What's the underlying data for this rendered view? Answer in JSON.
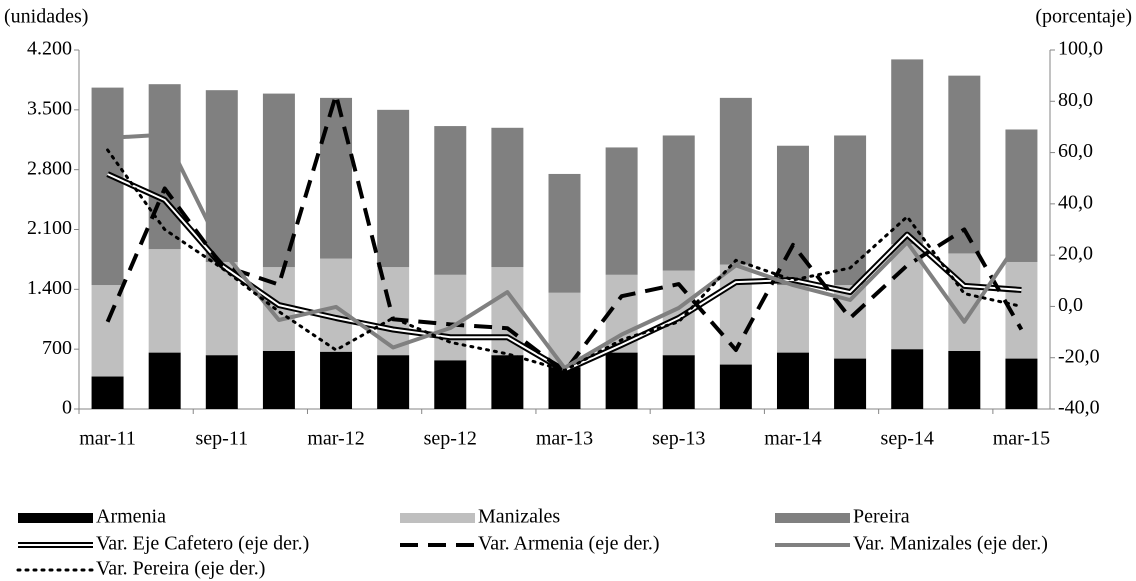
{
  "chart_data": {
    "type": "bar-line",
    "y_label": "(unidades)",
    "y2_label": "(porcentaje)",
    "categories": [
      "mar-11",
      null,
      "sep-11",
      null,
      "mar-12",
      null,
      "sep-12",
      null,
      "mar-13",
      null,
      "sep-13",
      null,
      "mar-14",
      null,
      "sep-14",
      null,
      "mar-15"
    ],
    "stacked": true,
    "legend": "bottom",
    "ylim": [
      0,
      4200
    ],
    "yticks": [
      0,
      700,
      {
        "value": 1400,
        "label": "1.400"
      },
      {
        "value": 2100,
        "label": "2.100"
      },
      {
        "value": 2800,
        "label": "2.800"
      },
      {
        "value": 3500,
        "label": "3.500"
      },
      {
        "value": 4200,
        "label": "4.200"
      }
    ],
    "y2lim": [
      -40,
      100
    ],
    "y2ticks": [
      {
        "value": -40,
        "label": "-40,0"
      },
      {
        "value": -20,
        "label": "-20,0"
      },
      {
        "value": 0,
        "label": "0,0"
      },
      {
        "value": 20,
        "label": "20,0"
      },
      {
        "value": 40,
        "label": "40,0"
      },
      {
        "value": 60,
        "label": "60,0"
      },
      {
        "value": 80,
        "label": "80,0"
      },
      {
        "value": 100,
        "label": "100,0"
      }
    ],
    "series": [
      {
        "name": "Armenia",
        "type": "bar",
        "color": "#000000",
        "values": [
          380,
          660,
          630,
          680,
          670,
          630,
          570,
          630,
          490,
          660,
          630,
          520,
          660,
          590,
          700,
          680,
          590
        ]
      },
      {
        "name": "Manizales",
        "type": "bar",
        "color": "#bfbfbf",
        "values": [
          1070,
          1210,
          1090,
          980,
          1090,
          1030,
          1000,
          1030,
          870,
          910,
          990,
          1170,
          790,
          860,
          1230,
          1140,
          1130
        ]
      },
      {
        "name": "Pereira",
        "type": "bar",
        "color": "#808080",
        "values": [
          2310,
          1930,
          2010,
          2030,
          1880,
          1840,
          1740,
          1630,
          1390,
          1490,
          1580,
          1950,
          1630,
          1750,
          2160,
          2080,
          1550
        ]
      },
      {
        "name": "Var. Eje Cafetero (eje der.)",
        "type": "line",
        "axis": "y2",
        "color": "#000000",
        "line_style": "double",
        "values": [
          51.6,
          41.5,
          16,
          0.5,
          -4.5,
          -9,
          -12,
          -12,
          -25,
          -15,
          -4.5,
          9.5,
          10.3,
          5.6,
          28,
          8,
          6.4
        ]
      },
      {
        "name": "Var. Armenia (eje der.)",
        "type": "line",
        "axis": "y2",
        "color": "#000000",
        "line_style": "dashed",
        "values": [
          -6,
          46,
          16,
          8.5,
          82.5,
          -5,
          -7,
          -8.5,
          -25.5,
          4,
          8.7,
          -17,
          24,
          -4.5,
          16,
          30,
          -9
        ]
      },
      {
        "name": "Var. Manizales (eje der.)",
        "type": "line",
        "axis": "y2",
        "color": "#808080",
        "line_style": "solid",
        "values": [
          65.7,
          67,
          22,
          -5.3,
          -0.2,
          -16,
          -8.4,
          5.6,
          -24,
          -11,
          -0.6,
          16,
          8.3,
          2.5,
          25,
          -6,
          27
        ]
      },
      {
        "name": "Var. Pereira (eje der.)",
        "type": "line",
        "axis": "y2",
        "color": "#000000",
        "line_style": "dotted",
        "values": [
          61,
          30,
          15,
          -2,
          -17,
          -4.5,
          -14,
          -18.5,
          -25,
          -13,
          -6,
          18,
          10.3,
          15,
          35,
          5,
          0
        ]
      }
    ]
  }
}
